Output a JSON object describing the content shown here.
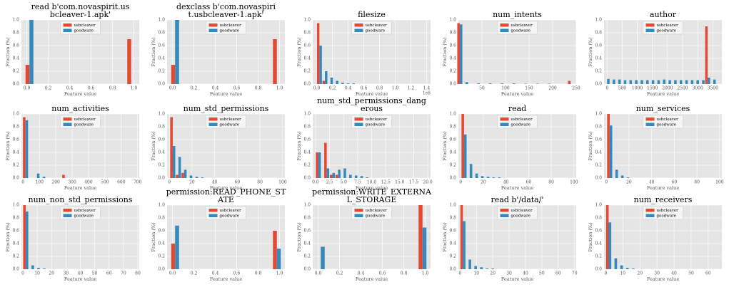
{
  "chart_data": [
    {
      "type": "bar",
      "title": [
        "read b'com.novaspirit.us",
        "bcleaver-1.apk'"
      ],
      "xlabel": "Feature value",
      "ylabel": "Fraction (%)",
      "legend": "upper center",
      "grid": true,
      "x": [
        0.025,
        0.975
      ],
      "series": [
        {
          "name": "usbcleaver",
          "color": "#e24a33",
          "values": [
            0.3,
            0.7
          ]
        },
        {
          "name": "goodware",
          "color": "#348abd",
          "values": [
            1.0,
            0
          ]
        }
      ],
      "xlim": [
        -0.05,
        1.05
      ],
      "xticks": [
        {
          "value": 0,
          "label": "0.0"
        },
        0.2,
        0.4,
        0.6,
        0.8,
        {
          "value": 1,
          "label": "1.0"
        }
      ],
      "ylim": [
        0,
        1.0
      ],
      "yticks": [
        {
          "value": 0,
          "label": "0.0"
        },
        0.2,
        0.4,
        0.6,
        0.8,
        {
          "value": 1,
          "label": "1.0"
        }
      ]
    },
    {
      "type": "bar",
      "title": [
        "dexclass b'com.novaspiri",
        "t.usbcleaver-1.apk'"
      ],
      "xlabel": "Feature value",
      "ylabel": "Fraction (%)",
      "legend": "upper center",
      "grid": true,
      "x": [
        0.025,
        0.975
      ],
      "series": [
        {
          "name": "usbcleaver",
          "color": "#e24a33",
          "values": [
            0.3,
            0.7
          ]
        },
        {
          "name": "goodware",
          "color": "#348abd",
          "values": [
            1.0,
            0
          ]
        }
      ],
      "xlim": [
        -0.05,
        1.05
      ],
      "xticks": [
        {
          "value": 0,
          "label": "0.0"
        },
        0.2,
        0.4,
        0.6,
        0.8,
        {
          "value": 1,
          "label": "1.0"
        }
      ],
      "ylim": [
        0,
        1.0
      ],
      "yticks": [
        {
          "value": 0,
          "label": "0.0"
        },
        0.2,
        0.4,
        0.6,
        0.8,
        {
          "value": 1,
          "label": "1.0"
        }
      ]
    },
    {
      "type": "bar",
      "title": [
        "filesize"
      ],
      "xlabel": "Feature value",
      "ylabel": "Fraction (%)",
      "legend": "upper center",
      "grid": true,
      "x_offset_label": "1e8",
      "x": [
        0.035,
        0.105,
        0.175,
        0.245,
        0.315,
        0.385,
        0.455
      ],
      "series": [
        {
          "name": "usbcleaver",
          "color": "#e24a33",
          "values": [
            0.95,
            0.05,
            0,
            0,
            0,
            0,
            0
          ]
        },
        {
          "name": "goodware",
          "color": "#348abd",
          "values": [
            0.6,
            0.2,
            0.1,
            0.05,
            0.02,
            0.01,
            0.01
          ]
        }
      ],
      "xlim": [
        -0.05,
        1.45
      ],
      "xticks": [
        {
          "value": 0,
          "label": "0.0"
        },
        0.2,
        0.4,
        0.6,
        0.8,
        {
          "value": 1,
          "label": "1.0"
        },
        1.2,
        1.4
      ],
      "ylim": [
        0,
        1.0
      ],
      "yticks": [
        {
          "value": 0,
          "label": "0.0"
        },
        0.2,
        0.4,
        0.6,
        0.8,
        {
          "value": 1,
          "label": "1.0"
        }
      ]
    },
    {
      "type": "bar",
      "title": [
        "num_intents"
      ],
      "xlabel": "Feature value",
      "ylabel": "Fraction (%)",
      "legend": "upper center",
      "grid": true,
      "x": [
        3,
        15,
        40,
        65,
        90,
        115,
        140,
        165,
        190,
        238
      ],
      "series": [
        {
          "name": "usbcleaver",
          "color": "#e24a33",
          "values": [
            0.95,
            0,
            0,
            0,
            0,
            0,
            0,
            0,
            0,
            0.05
          ]
        },
        {
          "name": "goodware",
          "color": "#348abd",
          "values": [
            0.93,
            0.03,
            0.01,
            0.01,
            0.01,
            0.01,
            0.005,
            0.005,
            0.005,
            0
          ]
        }
      ],
      "xlim": [
        0,
        250
      ],
      "xticks": [
        50,
        100,
        150,
        200,
        250
      ],
      "ylim": [
        0,
        1.0
      ],
      "yticks": [
        {
          "value": 0,
          "label": "0.0"
        },
        0.2,
        0.4,
        0.6,
        0.8,
        {
          "value": 1,
          "label": "1.0"
        }
      ]
    },
    {
      "type": "bar",
      "title": [
        "author"
      ],
      "xlabel": "Feature value",
      "ylabel": "Fraction (%)",
      "legend": "upper center",
      "grid": true,
      "x": [
        0,
        185,
        370,
        555,
        740,
        925,
        1110,
        1295,
        1480,
        1665,
        1850,
        2035,
        2220,
        2405,
        2590,
        2775,
        2960,
        3145,
        3330,
        3515
      ],
      "series": [
        {
          "name": "usbcleaver",
          "color": "#e24a33",
          "values": [
            0,
            0,
            0,
            0,
            0,
            0,
            0,
            0,
            0,
            0,
            0,
            0,
            0,
            0,
            0,
            0,
            0,
            0,
            0.9,
            0
          ]
        },
        {
          "name": "goodware",
          "color": "#348abd",
          "values": [
            0.08,
            0.07,
            0.07,
            0.06,
            0.06,
            0.06,
            0.06,
            0.06,
            0.06,
            0.06,
            0.07,
            0.06,
            0.06,
            0.06,
            0.06,
            0.06,
            0.06,
            0.06,
            0.1,
            0.07
          ]
        }
      ],
      "xlim": [
        -100,
        3800
      ],
      "xticks": [
        0,
        500,
        1000,
        1500,
        2000,
        2500,
        3000,
        3500
      ],
      "ylim": [
        0,
        1.0
      ],
      "yticks": [
        {
          "value": 0,
          "label": "0.0"
        },
        0.2,
        0.4,
        0.6,
        0.8,
        {
          "value": 1,
          "label": "1.0"
        }
      ]
    },
    {
      "type": "bar",
      "title": [
        "num_activities"
      ],
      "xlabel": "Feature value",
      "ylabel": "Fraction (%)",
      "legend": "upper center",
      "grid": true,
      "x": [
        15,
        85,
        120,
        255
      ],
      "series": [
        {
          "name": "usbcleaver",
          "color": "#e24a33",
          "values": [
            0.95,
            0,
            0,
            0.05
          ]
        },
        {
          "name": "goodware",
          "color": "#348abd",
          "values": [
            0.9,
            0.07,
            0.02,
            0
          ]
        }
      ],
      "xlim": [
        -10,
        710
      ],
      "xticks": [
        0,
        100,
        200,
        300,
        400,
        500,
        600,
        700
      ],
      "ylim": [
        0,
        1.0
      ],
      "yticks": [
        {
          "value": 0,
          "label": "0.0"
        },
        0.2,
        0.4,
        0.6,
        0.8,
        {
          "value": 1,
          "label": "1.0"
        }
      ]
    },
    {
      "type": "bar",
      "title": [
        "num_std_permissions"
      ],
      "xlabel": "Feature value",
      "ylabel": "Fraction (%)",
      "legend": "upper center",
      "grid": true,
      "x": [
        3,
        8,
        13,
        18,
        23,
        28
      ],
      "series": [
        {
          "name": "usbcleaver",
          "color": "#e24a33",
          "values": [
            0.95,
            0.05,
            0.08,
            0,
            0,
            0
          ]
        },
        {
          "name": "goodware",
          "color": "#348abd",
          "values": [
            0.5,
            0.33,
            0.13,
            0.04,
            0.02,
            0.01
          ]
        }
      ],
      "xlim": [
        -2,
        102
      ],
      "xticks": [
        0,
        20,
        40,
        60,
        80,
        100
      ],
      "ylim": [
        0,
        1.0
      ],
      "yticks": [
        {
          "value": 0,
          "label": "0.0"
        },
        0.2,
        0.4,
        0.6,
        0.8,
        {
          "value": 1,
          "label": "1.0"
        }
      ]
    },
    {
      "type": "bar",
      "title": [
        "num_std_permissions_dang",
        "erous"
      ],
      "xlabel": "Feature value",
      "ylabel": "Fraction (%)",
      "legend": "upper center",
      "grid": true,
      "x": [
        0.5,
        2,
        3,
        4,
        5,
        6,
        7,
        8,
        9
      ],
      "series": [
        {
          "name": "usbcleaver",
          "color": "#e24a33",
          "values": [
            0.4,
            0.55,
            0.05,
            0.05,
            0,
            0,
            0,
            0,
            0
          ]
        },
        {
          "name": "goodware",
          "color": "#348abd",
          "values": [
            0.4,
            0.15,
            0.08,
            0.13,
            0.15,
            0.05,
            0.04,
            0.03,
            0.01
          ]
        }
      ],
      "xlim": [
        -0.5,
        20.5
      ],
      "xticks": [
        {
          "value": 0,
          "label": "0.0"
        },
        2.5,
        {
          "value": 5,
          "label": "5.0"
        },
        7.5,
        {
          "value": 10,
          "label": "10.0"
        },
        12.5,
        {
          "value": 15,
          "label": "15.0"
        },
        17.5,
        {
          "value": 20,
          "label": "20.0"
        }
      ],
      "ylim": [
        0,
        1.0
      ],
      "yticks": [
        {
          "value": 0,
          "label": "0.0"
        },
        0.2,
        0.4,
        0.6,
        0.8,
        {
          "value": 1,
          "label": "1.0"
        }
      ]
    },
    {
      "type": "bar",
      "title": [
        "read"
      ],
      "xlabel": "Feature value",
      "ylabel": "Fraction (%)",
      "legend": "upper center",
      "grid": true,
      "x": [
        3,
        8,
        13,
        18,
        23,
        28,
        33
      ],
      "series": [
        {
          "name": "usbcleaver",
          "color": "#e24a33",
          "values": [
            1.0,
            0,
            0,
            0,
            0,
            0,
            0
          ]
        },
        {
          "name": "goodware",
          "color": "#348abd",
          "values": [
            0.68,
            0.22,
            0.07,
            0.03,
            0.02,
            0.01,
            0.01
          ]
        }
      ],
      "xlim": [
        -2,
        102
      ],
      "xticks": [
        0,
        20,
        40,
        60,
        80,
        100
      ],
      "ylim": [
        0,
        1.0
      ],
      "yticks": [
        {
          "value": 0,
          "label": "0.0"
        },
        0.2,
        0.4,
        0.6,
        0.8,
        {
          "value": 1,
          "label": "1.0"
        }
      ]
    },
    {
      "type": "bar",
      "title": [
        "num_services"
      ],
      "xlabel": "Feature value",
      "ylabel": "Fraction (%)",
      "legend": "upper center",
      "grid": true,
      "x": [
        3,
        8,
        13,
        18
      ],
      "series": [
        {
          "name": "usbcleaver",
          "color": "#e24a33",
          "values": [
            1.0,
            0,
            0,
            0
          ]
        },
        {
          "name": "goodware",
          "color": "#348abd",
          "values": [
            0.82,
            0.13,
            0.04,
            0.01
          ]
        }
      ],
      "xlim": [
        -2,
        102
      ],
      "xticks": [
        0,
        20,
        40,
        60,
        80,
        100
      ],
      "ylim": [
        0,
        1.0
      ],
      "yticks": [
        {
          "value": 0,
          "label": "0.0"
        },
        0.2,
        0.4,
        0.6,
        0.8,
        {
          "value": 1,
          "label": "1.0"
        }
      ]
    },
    {
      "type": "bar",
      "title": [
        "num_non_std_permissions"
      ],
      "xlabel": "Feature value",
      "ylabel": "Fraction (%)",
      "legend": "upper center",
      "grid": true,
      "x": [
        2,
        6,
        10,
        14
      ],
      "series": [
        {
          "name": "usbcleaver",
          "color": "#e24a33",
          "values": [
            1.0,
            0,
            0,
            0
          ]
        },
        {
          "name": "goodware",
          "color": "#348abd",
          "values": [
            0.9,
            0.06,
            0.02,
            0.01
          ]
        }
      ],
      "xlim": [
        -1,
        81
      ],
      "xticks": [
        0,
        10,
        20,
        30,
        40,
        50,
        60,
        70,
        80
      ],
      "ylim": [
        0,
        1.0
      ],
      "yticks": [
        {
          "value": 0,
          "label": "0.0"
        },
        0.2,
        0.4,
        0.6,
        0.8,
        {
          "value": 1,
          "label": "1.0"
        }
      ]
    },
    {
      "type": "bar",
      "title": [
        "permission:READ_PHONE_ST",
        "ATE"
      ],
      "xlabel": "Feature value",
      "ylabel": "Fraction (%)",
      "legend": "upper center",
      "grid": true,
      "x": [
        0.025,
        0.975
      ],
      "series": [
        {
          "name": "usbcleaver",
          "color": "#e24a33",
          "values": [
            0.4,
            0.6
          ]
        },
        {
          "name": "goodware",
          "color": "#348abd",
          "values": [
            0.68,
            0.32
          ]
        }
      ],
      "xlim": [
        -0.05,
        1.05
      ],
      "xticks": [
        {
          "value": 0,
          "label": "0.0"
        },
        0.2,
        0.4,
        0.6,
        0.8,
        {
          "value": 1,
          "label": "1.0"
        }
      ],
      "ylim": [
        0,
        1.0
      ],
      "yticks": [
        {
          "value": 0,
          "label": "0.0"
        },
        0.2,
        0.4,
        0.6,
        0.8,
        {
          "value": 1,
          "label": "1.0"
        }
      ]
    },
    {
      "type": "bar",
      "title": [
        "permission:WRITE_EXTERNA",
        "L_STORAGE"
      ],
      "xlabel": "Feature value",
      "ylabel": "Fraction (%)",
      "legend": "upper center",
      "grid": true,
      "x": [
        0.025,
        0.975
      ],
      "series": [
        {
          "name": "usbcleaver",
          "color": "#e24a33",
          "values": [
            0,
            1.0
          ]
        },
        {
          "name": "goodware",
          "color": "#348abd",
          "values": [
            0.35,
            0.65
          ]
        }
      ],
      "xlim": [
        -0.05,
        1.05
      ],
      "xticks": [
        {
          "value": 0,
          "label": "0.0"
        },
        0.2,
        0.4,
        0.6,
        0.8,
        {
          "value": 1,
          "label": "1.0"
        }
      ],
      "ylim": [
        0,
        1.0
      ],
      "yticks": [
        {
          "value": 0,
          "label": "0.0"
        },
        0.2,
        0.4,
        0.6,
        0.8,
        {
          "value": 1,
          "label": "1.0"
        }
      ]
    },
    {
      "type": "bar",
      "title": [
        "read b'/data/'"
      ],
      "xlabel": "Feature value",
      "ylabel": "Fraction (%)",
      "legend": "upper center",
      "grid": true,
      "x": [
        1.75,
        5.25,
        8.75,
        12.25,
        15.75,
        19.25
      ],
      "series": [
        {
          "name": "usbcleaver",
          "color": "#e24a33",
          "values": [
            1.0,
            0,
            0,
            0,
            0,
            0
          ]
        },
        {
          "name": "goodware",
          "color": "#348abd",
          "values": [
            0.75,
            0.15,
            0.05,
            0.03,
            0.01,
            0.01
          ]
        }
      ],
      "xlim": [
        -1,
        71
      ],
      "xticks": [
        0,
        10,
        20,
        30,
        40,
        50,
        60,
        70
      ],
      "ylim": [
        0,
        1.0
      ],
      "yticks": [
        {
          "value": 0,
          "label": "0.0"
        },
        0.2,
        0.4,
        0.6,
        0.8,
        {
          "value": 1,
          "label": "1.0"
        }
      ]
    },
    {
      "type": "bar",
      "title": [
        "num_receivers"
      ],
      "xlabel": "Feature value",
      "ylabel": "Fraction (%)",
      "legend": "upper center",
      "grid": true,
      "x": [
        1.7,
        5.1,
        8.5,
        11.9,
        15.3
      ],
      "series": [
        {
          "name": "usbcleaver",
          "color": "#e24a33",
          "values": [
            1.0,
            0,
            0,
            0,
            0
          ]
        },
        {
          "name": "goodware",
          "color": "#348abd",
          "values": [
            0.73,
            0.17,
            0.06,
            0.02,
            0.01
          ]
        }
      ],
      "xlim": [
        -1,
        68
      ],
      "xticks": [
        0,
        10,
        20,
        30,
        40,
        50,
        60
      ],
      "ylim": [
        0,
        1.0
      ],
      "yticks": [
        {
          "value": 0,
          "label": "0.0"
        },
        0.2,
        0.4,
        0.6,
        0.8,
        {
          "value": 1,
          "label": "1.0"
        }
      ]
    }
  ]
}
